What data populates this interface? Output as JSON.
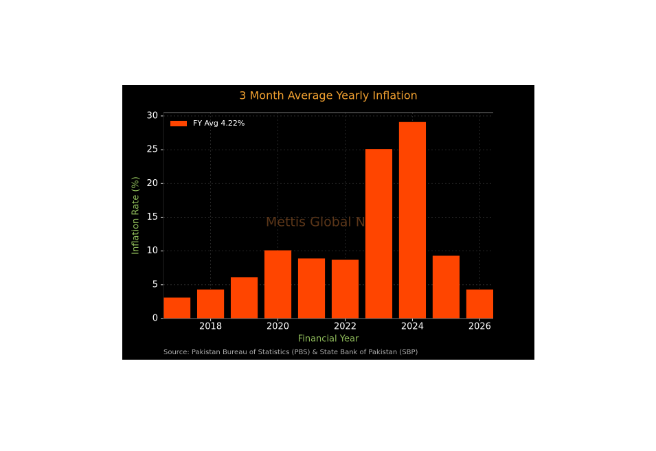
{
  "chart_data": {
    "type": "bar",
    "title": "3 Month Average Yearly Inflation",
    "xlabel": "Financial Year",
    "ylabel": "Inflation Rate (%)",
    "x": [
      2017,
      2018,
      2019,
      2020,
      2021,
      2022,
      2023,
      2024,
      2025,
      2026
    ],
    "series": [
      {
        "name": "FY Avg 4.22%",
        "color": "#ff4500",
        "values": [
          3.1,
          4.3,
          6.1,
          10.1,
          8.9,
          8.7,
          25.1,
          29.1,
          9.3,
          4.3
        ]
      }
    ],
    "xlim": [
      2016.6,
      2026.4
    ],
    "ylim": [
      0,
      30.5
    ],
    "xticks": [
      2018,
      2020,
      2022,
      2024,
      2026
    ],
    "yticks": [
      0,
      5,
      10,
      15,
      20,
      25,
      30
    ],
    "grid": true,
    "legend": "upper left",
    "watermark": "Mettis Global News",
    "source": "Source: Pakistan Bureau of Statistics (PBS) & State Bank of Pakistan (SBP)"
  }
}
